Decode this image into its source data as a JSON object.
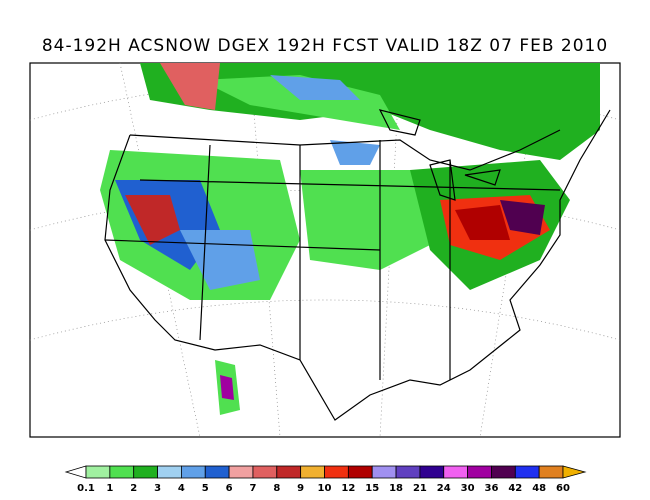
{
  "title": "84-192H ACSNOW DGEX 192H FCST VALID 18Z 07 FEB 2010",
  "colorbar": {
    "levels": [
      0.1,
      1,
      2,
      3,
      4,
      5,
      6,
      7,
      8,
      9,
      10,
      12,
      15,
      18,
      21,
      24,
      30,
      36,
      42,
      48,
      60
    ],
    "colors": [
      "#ffffff",
      "#a0f0a0",
      "#50e050",
      "#20b020",
      "#a0d0f0",
      "#60a0e8",
      "#2060d0",
      "#f0a0a0",
      "#e06060",
      "#c02828",
      "#f0b030",
      "#f03010",
      "#b00000",
      "#a090f0",
      "#6040c0",
      "#300090",
      "#f060f0",
      "#a000a0",
      "#500050",
      "#2030f0",
      "#e08020",
      "#f0b000"
    ]
  }
}
